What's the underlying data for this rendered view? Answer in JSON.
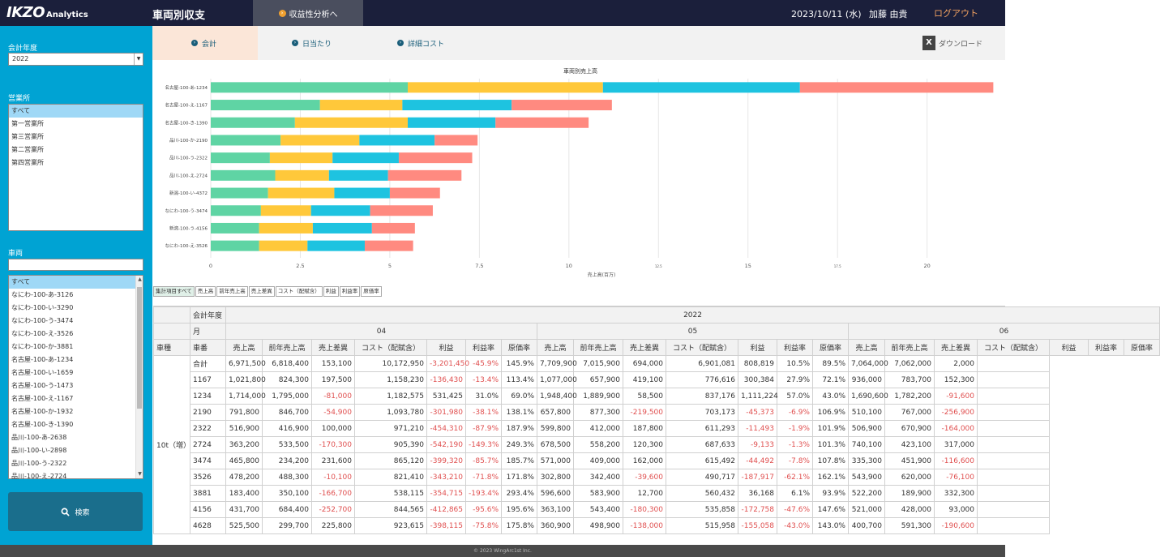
{
  "app": {
    "logo_main": "IKZO",
    "logo_sub": "Analytics",
    "page_title": "車両別収支",
    "analysis_button": "収益性分析へ",
    "date": "2023/10/11 (水)",
    "user": "加藤 由貴",
    "logout": "ログアウト"
  },
  "sidebar": {
    "year_label": "会計年度",
    "year_value": "2022",
    "office_label": "営業所",
    "offices": [
      "すべて",
      "第一営業所",
      "第三営業所",
      "第二営業所",
      "第四営業所"
    ],
    "vehicle_label": "車両",
    "vehicles": [
      "すべて",
      "なにわ-100-あ-3126",
      "なにわ-100-い-3290",
      "なにわ-100-う-3474",
      "なにわ-100-え-3526",
      "なにわ-100-か-3881",
      "名古屋-100-あ-1234",
      "名古屋-100-い-1659",
      "名古屋-100-う-1473",
      "名古屋-100-え-1167",
      "名古屋-100-か-1932",
      "名古屋-100-き-1390",
      "品川-100-あ-2638",
      "品川-100-い-2898",
      "品川-100-う-2322",
      "品川-100-え-2724"
    ],
    "search_button": "検索"
  },
  "tabs": [
    {
      "label": "会計"
    },
    {
      "label": "日当たり"
    },
    {
      "label": "詳細コスト"
    }
  ],
  "download_label": "ダウンロード",
  "chart_data": {
    "type": "bar",
    "orientation": "horizontal",
    "stacked": true,
    "title": "車両別売上高",
    "xlabel": "売上高(百万)",
    "xlim": [
      0,
      22
    ],
    "xticks": [
      "0",
      "2.5",
      "5",
      "7.5",
      "10",
      "12.5",
      "15",
      "17.5",
      "20"
    ],
    "categories": [
      "名古屋-100-あ-1234",
      "名古屋-100-え-1167",
      "名古屋-100-き-1390",
      "品川-100-か-2190",
      "品川-100-う-2322",
      "品川-100-え-2724",
      "新潟-100-い-4372",
      "なにわ-100-う-3474",
      "新潟-100-う-4156",
      "なにわ-100-え-3526"
    ],
    "series": [
      {
        "color": "#5fd4a4",
        "values": [
          5.5,
          3.05,
          2.35,
          1.95,
          1.65,
          1.8,
          1.6,
          1.4,
          1.35,
          1.35
        ]
      },
      {
        "color": "#ffc83a",
        "values": [
          5.45,
          2.3,
          3.15,
          2.2,
          1.75,
          1.5,
          1.85,
          1.4,
          1.5,
          1.35
        ]
      },
      {
        "color": "#1ec3e0",
        "values": [
          5.5,
          3.05,
          2.45,
          2.1,
          1.85,
          1.65,
          1.55,
          1.65,
          1.65,
          1.6
        ]
      },
      {
        "color": "#ff8a80",
        "values": [
          5.4,
          2.8,
          2.6,
          1.2,
          2.05,
          2.05,
          1.4,
          1.75,
          1.2,
          1.35
        ]
      }
    ]
  },
  "filters": [
    "集計項目すべて",
    "売上高",
    "前年売上高",
    "売上差異",
    "コスト（配賦含）",
    "利益",
    "利益率",
    "原価率"
  ],
  "table": {
    "hdr_year": "会計年度",
    "hdr_month": "月",
    "hdr_type": "車種",
    "hdr_num": "車番",
    "year": "2022",
    "months": [
      "04",
      "05",
      "06"
    ],
    "cols": [
      "売上高",
      "前年売上高",
      "売上差異",
      "コスト（配賦含）",
      "利益",
      "利益率",
      "原価率"
    ],
    "group": "10t（増）",
    "rows": [
      {
        "k": "合計",
        "v": [
          "6,971,500",
          "6,818,400",
          "153,100",
          "10,172,950",
          "-3,201,450",
          "-45.9%",
          "145.9%",
          "7,709,900",
          "7,015,900",
          "694,000",
          "6,901,081",
          "808,819",
          "10.5%",
          "89.5%",
          "7,064,000",
          "7,062,000",
          "2,000"
        ]
      },
      {
        "k": "1167",
        "v": [
          "1,021,800",
          "824,300",
          "197,500",
          "1,158,230",
          "-136,430",
          "-13.4%",
          "113.4%",
          "1,077,000",
          "657,900",
          "419,100",
          "776,616",
          "300,384",
          "27.9%",
          "72.1%",
          "936,000",
          "783,700",
          "152,300"
        ]
      },
      {
        "k": "1234",
        "v": [
          "1,714,000",
          "1,795,000",
          "-81,000",
          "1,182,575",
          "531,425",
          "31.0%",
          "69.0%",
          "1,948,400",
          "1,889,900",
          "58,500",
          "837,176",
          "1,111,224",
          "57.0%",
          "43.0%",
          "1,690,600",
          "1,782,200",
          "-91,600"
        ]
      },
      {
        "k": "2190",
        "v": [
          "791,800",
          "846,700",
          "-54,900",
          "1,093,780",
          "-301,980",
          "-38.1%",
          "138.1%",
          "657,800",
          "877,300",
          "-219,500",
          "703,173",
          "-45,373",
          "-6.9%",
          "106.9%",
          "510,100",
          "767,000",
          "-256,900"
        ]
      },
      {
        "k": "2322",
        "v": [
          "516,900",
          "416,900",
          "100,000",
          "971,210",
          "-454,310",
          "-87.9%",
          "187.9%",
          "599,800",
          "412,000",
          "187,800",
          "611,293",
          "-11,493",
          "-1.9%",
          "101.9%",
          "506,900",
          "670,900",
          "-164,000"
        ]
      },
      {
        "k": "2724",
        "v": [
          "363,200",
          "533,500",
          "-170,300",
          "905,390",
          "-542,190",
          "-149.3%",
          "249.3%",
          "678,500",
          "558,200",
          "120,300",
          "687,633",
          "-9,133",
          "-1.3%",
          "101.3%",
          "740,100",
          "423,100",
          "317,000"
        ]
      },
      {
        "k": "3474",
        "v": [
          "465,800",
          "234,200",
          "231,600",
          "865,120",
          "-399,320",
          "-85.7%",
          "185.7%",
          "571,000",
          "409,000",
          "162,000",
          "615,492",
          "-44,492",
          "-7.8%",
          "107.8%",
          "335,300",
          "451,900",
          "-116,600"
        ]
      },
      {
        "k": "3526",
        "v": [
          "478,200",
          "488,300",
          "-10,100",
          "821,410",
          "-343,210",
          "-71.8%",
          "171.8%",
          "302,800",
          "342,400",
          "-39,600",
          "490,717",
          "-187,917",
          "-62.1%",
          "162.1%",
          "543,900",
          "620,000",
          "-76,100"
        ]
      },
      {
        "k": "3881",
        "v": [
          "183,400",
          "350,100",
          "-166,700",
          "538,115",
          "-354,715",
          "-193.4%",
          "293.4%",
          "596,600",
          "583,900",
          "12,700",
          "560,432",
          "36,168",
          "6.1%",
          "93.9%",
          "522,200",
          "189,900",
          "332,300"
        ]
      },
      {
        "k": "4156",
        "v": [
          "431,700",
          "684,400",
          "-252,700",
          "844,565",
          "-412,865",
          "-95.6%",
          "195.6%",
          "363,100",
          "543,400",
          "-180,300",
          "535,858",
          "-172,758",
          "-47.6%",
          "147.6%",
          "521,000",
          "428,000",
          "93,000"
        ]
      },
      {
        "k": "4628",
        "v": [
          "525,500",
          "299,700",
          "225,800",
          "923,615",
          "-398,115",
          "-75.8%",
          "175.8%",
          "360,900",
          "498,900",
          "-138,000",
          "515,958",
          "-155,058",
          "-43.0%",
          "143.0%",
          "400,700",
          "591,300",
          "-190,600"
        ]
      }
    ]
  },
  "footer": "© 2023 WingArc1st Inc."
}
